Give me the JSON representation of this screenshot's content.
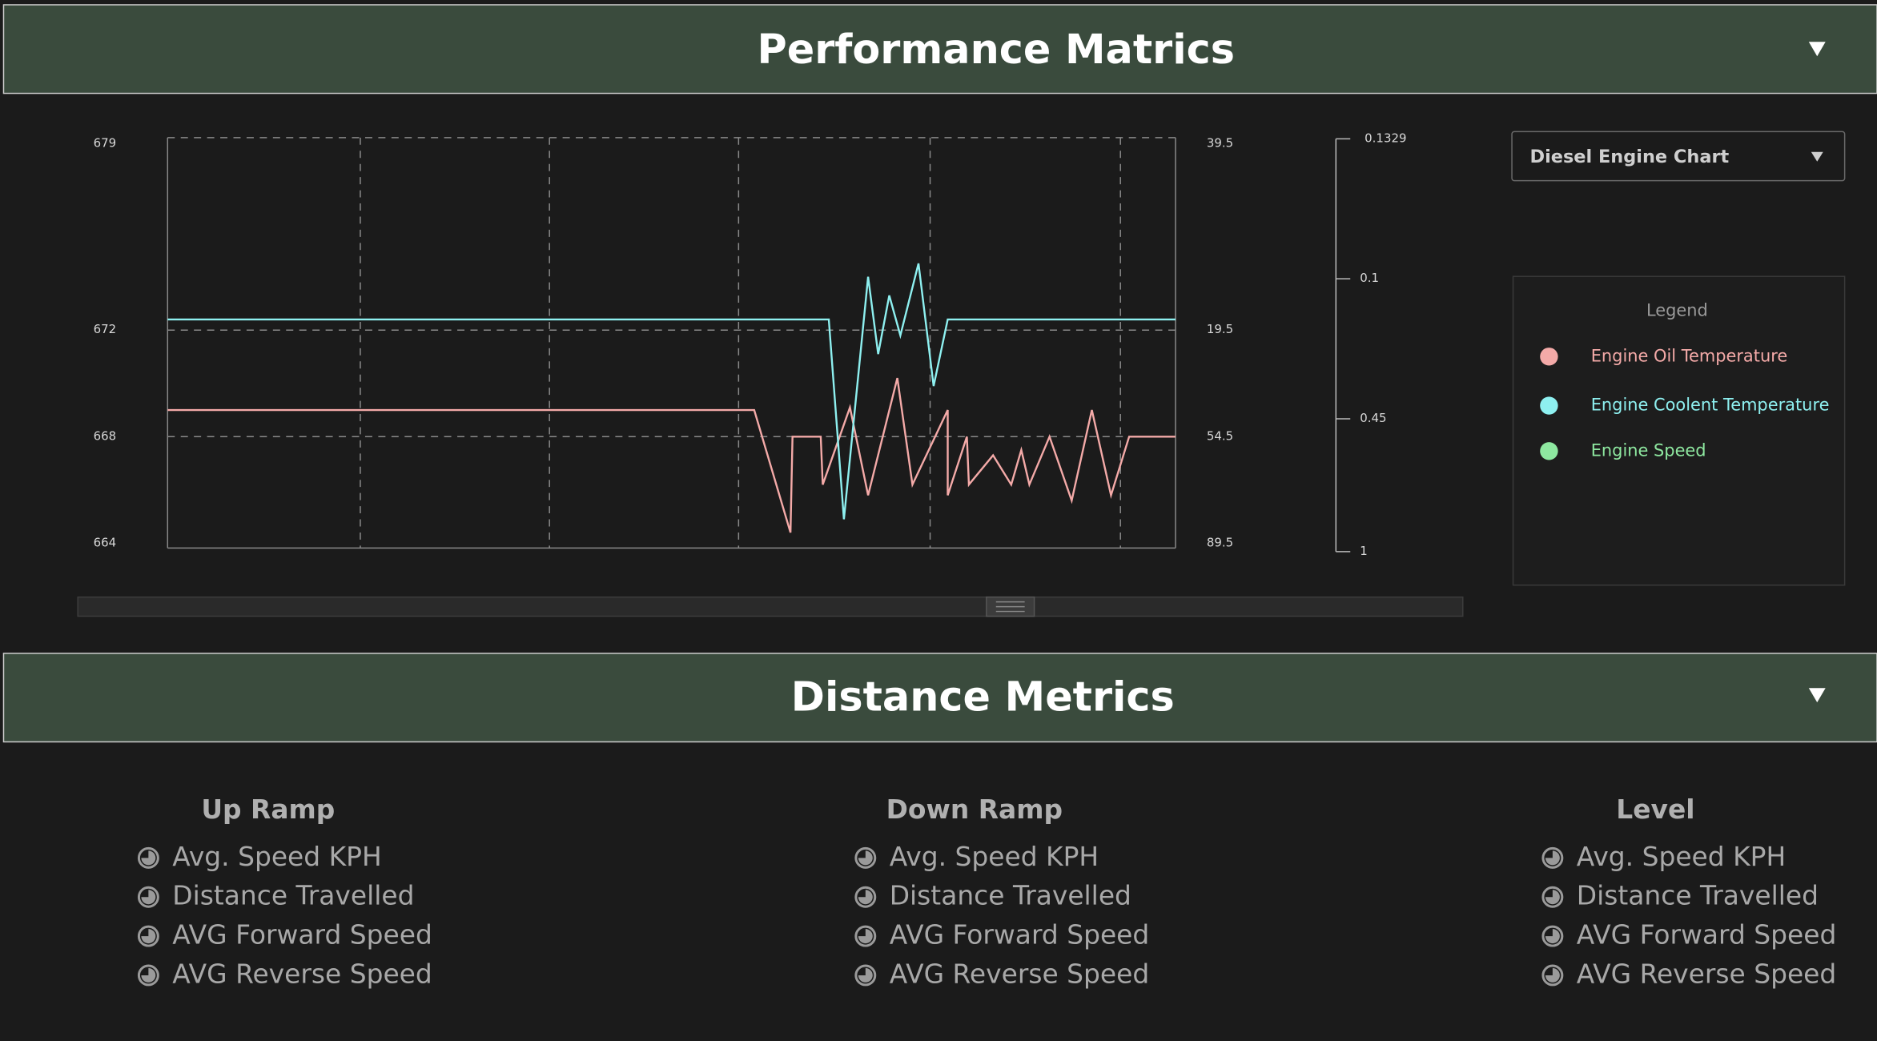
{
  "performance": {
    "title": "Performance Matrics",
    "dropdown": "Diesel Engine Chart",
    "legend_title": "Legend"
  },
  "chart_data": {
    "type": "line",
    "xlim": [
      0,
      100
    ],
    "ylim": [
      664,
      679
    ],
    "yticks": [
      679,
      672,
      668,
      664
    ],
    "grid": true,
    "y2_labels": [
      "39.5",
      "19.5",
      "54.5",
      "89.5"
    ],
    "y3_labels": [
      "0.1329",
      "0.1",
      "0.45",
      "1"
    ],
    "series": [
      {
        "name": "Engine Oil Temperature",
        "color": "#f4aaa8",
        "x": [
          0,
          58.2,
          61.8,
          62.0,
          64.8,
          65.0,
          67.7,
          69.5,
          72.4,
          73.9,
          77.4,
          77.4,
          79.3,
          79.5,
          81.9,
          83.7,
          84.7,
          85.5,
          87.5,
          89.7,
          91.7,
          93.6,
          95.4,
          100
        ],
        "values": [
          669.0,
          669.0,
          664.4,
          668.0,
          668.0,
          666.2,
          669.1,
          665.8,
          670.2,
          666.2,
          669.0,
          665.8,
          668.0,
          666.2,
          667.3,
          666.2,
          667.5,
          666.2,
          668.0,
          665.6,
          669.0,
          665.8,
          668.0,
          668.0
        ]
      },
      {
        "name": "Engine Coolent Temperature",
        "color": "#8ef0f0",
        "x": [
          0,
          65.6,
          67.1,
          69.5,
          70.5,
          71.6,
          72.7,
          74.5,
          76.0,
          77.4,
          100
        ],
        "values": [
          672.4,
          672.4,
          664.9,
          674.0,
          671.1,
          673.3,
          671.8,
          674.5,
          669.9,
          672.4,
          672.4
        ]
      },
      {
        "name": "Engine Speed",
        "color": "#8ee8a0",
        "x": [],
        "values": []
      }
    ]
  },
  "distance": {
    "title": "Distance Metrics",
    "columns": [
      {
        "title": "Up Ramp",
        "items": [
          "Avg. Speed KPH",
          "Distance Travelled",
          "AVG Forward Speed",
          "AVG Reverse Speed"
        ]
      },
      {
        "title": "Down Ramp",
        "items": [
          "Avg. Speed KPH",
          "Distance Travelled",
          "AVG Forward Speed",
          "AVG Reverse Speed"
        ]
      },
      {
        "title": "Level",
        "items": [
          "Avg. Speed KPH",
          "Distance Travelled",
          "AVG Forward Speed",
          "AVG Reverse Speed"
        ]
      }
    ]
  }
}
